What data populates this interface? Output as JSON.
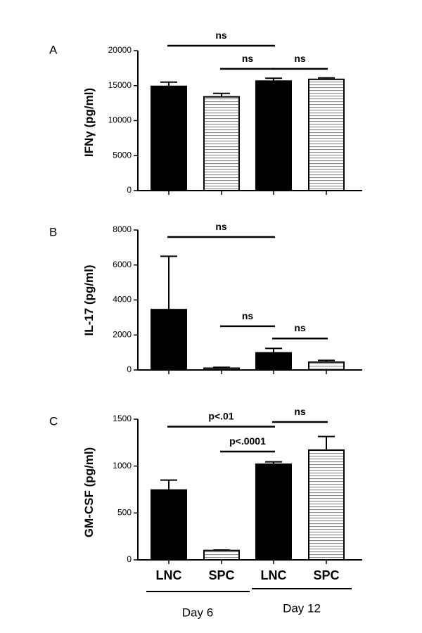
{
  "chart_data": [
    {
      "type": "bar",
      "panel_label": "A",
      "ylabel": "IFNγ (pg/ml)",
      "ylim": [
        0,
        20000
      ],
      "yticks": [
        0,
        5000,
        10000,
        15000,
        20000
      ],
      "categories": [
        "LNC",
        "SPC",
        "LNC",
        "SPC"
      ],
      "values": [
        14900,
        13400,
        15650,
        15900
      ],
      "errors": [
        600,
        500,
        400,
        200
      ],
      "fills": [
        "solid",
        "striped",
        "solid",
        "striped"
      ],
      "annotations": [
        {
          "text": "ns",
          "from": 0,
          "to": 2,
          "y": 20700
        },
        {
          "text": "ns",
          "from": 1,
          "to": 2,
          "y": 17400
        },
        {
          "text": "ns",
          "from": 2,
          "to": 3,
          "y": 17400
        }
      ]
    },
    {
      "type": "bar",
      "panel_label": "B",
      "ylabel": "IL-17 (pg/ml)",
      "ylim": [
        0,
        8000
      ],
      "yticks": [
        0,
        2000,
        4000,
        6000,
        8000
      ],
      "categories": [
        "LNC",
        "SPC",
        "LNC",
        "SPC"
      ],
      "values": [
        3450,
        100,
        980,
        450
      ],
      "errors": [
        3050,
        50,
        250,
        100
      ],
      "fills": [
        "solid",
        "striped",
        "solid",
        "striped"
      ],
      "annotations": [
        {
          "text": "ns",
          "from": 0,
          "to": 2,
          "y": 7600
        },
        {
          "text": "ns",
          "from": 1,
          "to": 2,
          "y": 2500
        },
        {
          "text": "ns",
          "from": 2,
          "to": 3,
          "y": 1800
        }
      ]
    },
    {
      "type": "bar",
      "panel_label": "C",
      "ylabel": "GM-CSF (pg/ml)",
      "ylim": [
        0,
        1500
      ],
      "yticks": [
        0,
        500,
        1000,
        1500
      ],
      "categories": [
        "LNC",
        "SPC",
        "LNC",
        "SPC"
      ],
      "values": [
        745,
        100,
        1020,
        1170
      ],
      "errors": [
        105,
        5,
        25,
        145
      ],
      "fills": [
        "solid",
        "striped",
        "solid",
        "striped"
      ],
      "annotations": [
        {
          "text": "p<.01",
          "from": 0,
          "to": 2,
          "y": 1420
        },
        {
          "text": "p<.0001",
          "from": 1,
          "to": 2,
          "y": 1155
        },
        {
          "text": "ns",
          "from": 2,
          "to": 3,
          "y": 1470
        }
      ]
    }
  ],
  "x_labels": [
    "LNC",
    "SPC",
    "LNC",
    "SPC"
  ],
  "groups": [
    {
      "label": "Day 6",
      "from": 0,
      "to": 1
    },
    {
      "label": "Day 12",
      "from": 2,
      "to": 3
    }
  ],
  "colors": {
    "bar_solid": "#000000",
    "stripe": "#888888",
    "background": "#ffffff"
  }
}
